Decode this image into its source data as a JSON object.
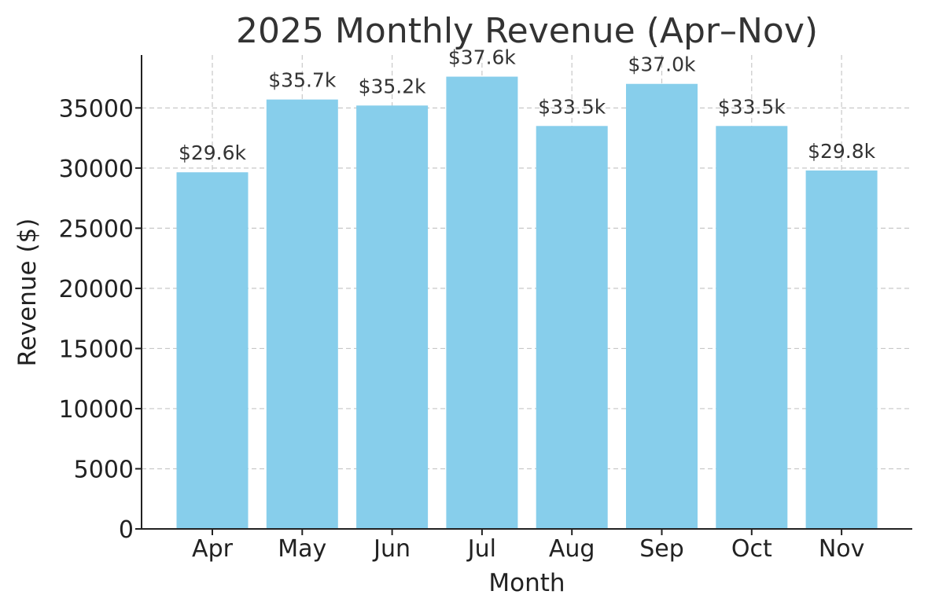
{
  "chart_data": {
    "type": "bar",
    "title": "2025 Monthly Revenue (Apr–Nov)",
    "xlabel": "Month",
    "ylabel": "Revenue ($)",
    "categories": [
      "Apr",
      "May",
      "Jun",
      "Jul",
      "Aug",
      "Sep",
      "Oct",
      "Nov"
    ],
    "values": [
      29650,
      35700,
      35200,
      37600,
      33500,
      37000,
      33500,
      29800
    ],
    "data_labels": [
      "$29.6k",
      "$35.7k",
      "$35.2k",
      "$37.6k",
      "$33.5k",
      "$37.0k",
      "$33.5k",
      "$29.8k"
    ],
    "y_ticks": [
      0,
      5000,
      10000,
      15000,
      20000,
      25000,
      30000,
      35000
    ],
    "ylim": [
      0,
      39400
    ],
    "grid": true,
    "bar_color": "#87CEEB"
  }
}
